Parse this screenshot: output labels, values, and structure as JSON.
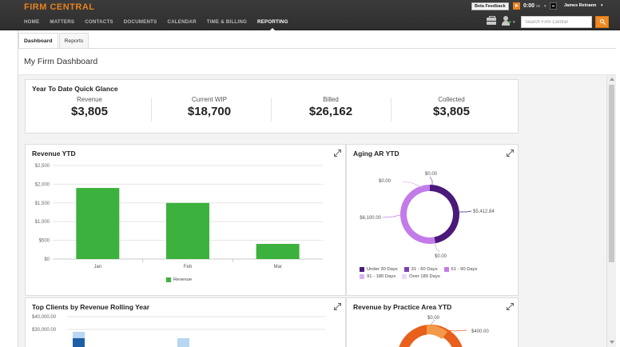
{
  "app": {
    "logo": "FIRM CENTRAL"
  },
  "nav": [
    {
      "label": "HOME",
      "active": false
    },
    {
      "label": "MATTERS",
      "active": false
    },
    {
      "label": "CONTACTS",
      "active": false
    },
    {
      "label": "DOCUMENTS",
      "active": false
    },
    {
      "label": "CALENDAR",
      "active": false
    },
    {
      "label": "TIME & BILLING",
      "active": false
    },
    {
      "label": "REPORTING",
      "active": true
    }
  ],
  "header_right": {
    "beta_feedback": "Beta Feedback",
    "timer_value": "0:00",
    "timer_unit": "08",
    "user_name": "James Reinann",
    "search_placeholder": "Search Firm Central"
  },
  "icons": {
    "play": "play-icon",
    "stop": "stop-icon",
    "briefcase": "briefcase-add-icon",
    "add_person": "add-person-icon",
    "search": "search-icon",
    "expand": "expand-icon"
  },
  "tabs": [
    {
      "label": "Dashboard",
      "active": true
    },
    {
      "label": "Reports",
      "active": false
    }
  ],
  "page_title": "My Firm Dashboard",
  "quick_glance": {
    "title": "Year To Date Quick Glance",
    "stats": [
      {
        "label": "Revenue",
        "value": "$3,805"
      },
      {
        "label": "Current WIP",
        "value": "$18,700"
      },
      {
        "label": "Billed",
        "value": "$26,162"
      },
      {
        "label": "Collected",
        "value": "$3,805"
      }
    ]
  },
  "revenue_ytd": {
    "title": "Revenue YTD",
    "chart_data": {
      "type": "bar",
      "categories": [
        "Jan",
        "Feb",
        "Mar"
      ],
      "series": [
        {
          "name": "Revenue",
          "values": [
            1900,
            1500,
            405
          ],
          "color": "#3db13d"
        }
      ],
      "yticks": [
        "$0",
        "$500",
        "$1,000",
        "$1,500",
        "$2,000",
        "$2,500"
      ],
      "ylim": [
        0,
        2500
      ],
      "legend": "bottom",
      "grid": true
    }
  },
  "aging_ar": {
    "title": "Aging AR YTD",
    "chart_data": {
      "type": "pie",
      "donut": true,
      "categories": [
        "Under 30 Days",
        "31 - 60 Days",
        "61 - 90 Days",
        "91 - 180 Days",
        "Over 180 Days"
      ],
      "values": [
        5412.84,
        0,
        6100.0,
        0,
        0
      ],
      "labels": [
        "$5,412.84",
        "$0.00",
        "$6,100.00",
        "$0.00",
        "$0.00"
      ],
      "colors": [
        "#4a1a7a",
        "#7b3fb5",
        "#c27be8",
        "#d8b4ef",
        "#ebd9f7"
      ],
      "legend": "bottom"
    }
  },
  "top_clients": {
    "title": "Top Clients by Revenue Rolling Year",
    "chart_data": {
      "type": "bar",
      "yticks": [
        "$40,000.00",
        "$30,000.00"
      ],
      "ylim": [
        0,
        40000
      ]
    }
  },
  "practice_area": {
    "title": "Revenue by Practice Area YTD",
    "chart_data": {
      "type": "pie",
      "labels": [
        "$0.00",
        "$400.00"
      ],
      "colors": [
        "#e8601c",
        "#f29a4a"
      ]
    }
  }
}
